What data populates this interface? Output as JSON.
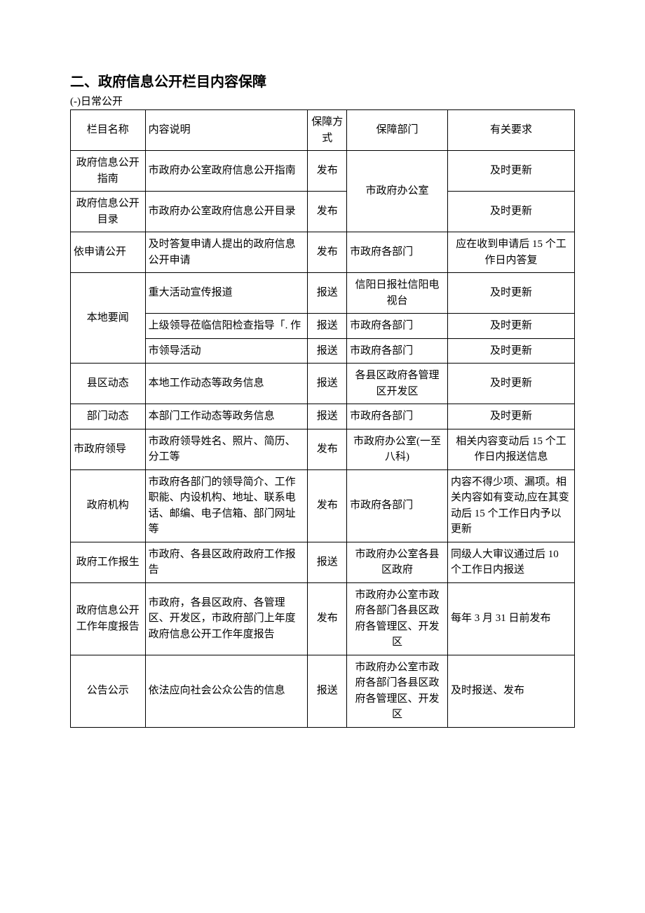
{
  "heading": "二、政府信息公开栏目内容保障",
  "subheading": "(-)日常公开",
  "columns": [
    "栏目名称",
    "内容说明",
    "保障方式",
    "保障部门",
    "有关要求"
  ],
  "rows": [
    {
      "name": "政府信息公开指南",
      "desc": "市政府办公室政府信息公开指南",
      "method": "发布",
      "dept": "市政府办公室",
      "dept_rowspan": 2,
      "req": "及时更新"
    },
    {
      "name": "政府信息公开目录",
      "desc": "市政府办公室政府信息公开目录",
      "method": "发布",
      "dept": null,
      "req": "及时更新"
    },
    {
      "name": "依申请公开",
      "name_align": "left",
      "desc": "及时答复申请人提出的政府信息公开申请",
      "method": "发布",
      "dept": "市政府各部门",
      "dept_align": "left",
      "req": "应在收到申请后 15 个工作日内答复"
    },
    {
      "name": "本地要闻",
      "name_rowspan": 3,
      "desc": "重大活动宣传报道",
      "method": "报送",
      "dept": "信阳日报社信阳电视台",
      "req": "及时更新"
    },
    {
      "name": null,
      "desc": "上级领导莅临信阳检查指导「. 作",
      "method": "报送",
      "dept": "市政府各部门",
      "dept_align": "left",
      "req": "及时更新"
    },
    {
      "name": null,
      "desc": "市领导活动",
      "method": "报送",
      "dept": "市政府各部门",
      "dept_align": "left",
      "req": "及时更新"
    },
    {
      "name": "县区动态",
      "desc": "本地工作动态等政务信息",
      "method": "报送",
      "dept": "各县区政府各管理区开发区",
      "req": "及时更新"
    },
    {
      "name": "部门动态",
      "desc": "本部门工作动态等政务信息",
      "method": "报送",
      "dept": "市政府各部门",
      "dept_align": "left",
      "req": "及时更新"
    },
    {
      "name": "市政府领导",
      "name_align": "left",
      "desc": "市政府领导姓名、照片、简历、分工等",
      "method": "发布",
      "dept": "市政府办公室(一至八科)",
      "req": "相关内容变动后 15 个工作日内报送信息"
    },
    {
      "name": "政府机构",
      "desc": "市政府各部门的领导简介、工作职能、内设机构、地址、联系电话、邮编、电子信箱、部门网址等",
      "method": "发布",
      "dept": "市政府各部门",
      "dept_align": "left",
      "req": "内容不得少项、漏项。相关内容如有变动,应在其变动后 15 个工作日内予以更新",
      "req_align": "left"
    },
    {
      "name": "政府工作报生",
      "desc": "市政府、各县区政府政府工作报告",
      "method": "报送",
      "dept": "市政府办公室各县区政府",
      "req": "同级人大审议通过后 10 个工作日内报送",
      "req_align": "left"
    },
    {
      "name": "政府信息公开工作年度报告",
      "desc": "市政府，各县区政府、各管理区、开发区，市政府部门上年度政府信息公开工作年度报告",
      "method": "发布",
      "dept": "市政府办公室市政府各部门各县区政府各管理区、开发区",
      "req": "每年 3 月 31 日前发布",
      "req_align": "left"
    },
    {
      "name": "公告公示",
      "desc": "依法应向社会公众公告的信息",
      "method": "报送",
      "dept": "市政府办公室市政府各部门各县区政府各管理区、开发区",
      "req": "及时报送、发布",
      "req_align": "left"
    }
  ]
}
